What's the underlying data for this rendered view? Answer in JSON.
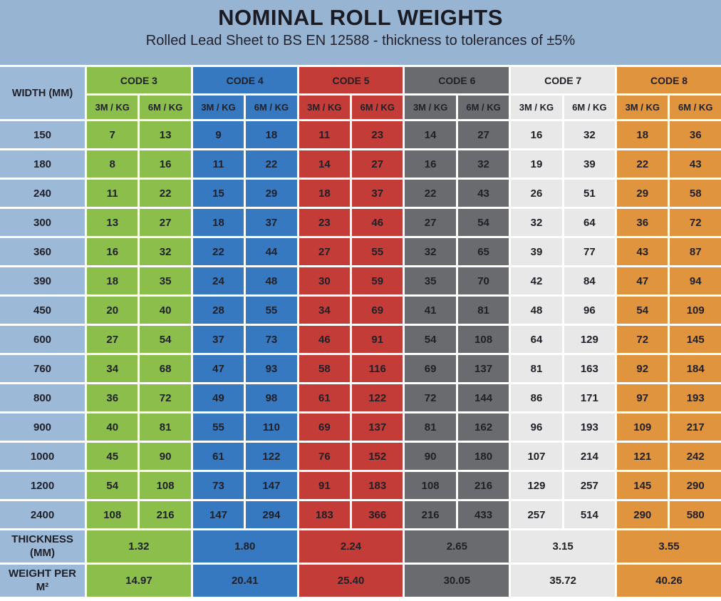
{
  "banner": {
    "title": "NOMINAL ROLL WEIGHTS",
    "subtitle": "Rolled Lead Sheet to BS EN 12588 - thickness to tolerances of ±5%"
  },
  "colors": {
    "banner_bg": "#98B4D3",
    "width_col_bg": "#9DB9D8",
    "grid": "#FFFFFF",
    "text": "#202028",
    "codes": [
      "#8CBE4C",
      "#3679C0",
      "#C43C37",
      "#6A6B6E",
      "#E8E8E8",
      "#E0943D"
    ]
  },
  "chart_data": {
    "type": "table",
    "title": "NOMINAL ROLL WEIGHTS",
    "subtitle": "Rolled Lead Sheet to BS EN 12588 - thickness to tolerances of ±5%",
    "width_header": "WIDTH (MM)",
    "code_labels": [
      "CODE 3",
      "CODE 4",
      "CODE 5",
      "CODE 6",
      "CODE 7",
      "CODE 8"
    ],
    "subheaders": [
      "3M / KG",
      "6M / KG"
    ],
    "rows": [
      {
        "width": "150",
        "values": [
          [
            7,
            13
          ],
          [
            9,
            18
          ],
          [
            11,
            23
          ],
          [
            14,
            27
          ],
          [
            16,
            32
          ],
          [
            18,
            36
          ]
        ]
      },
      {
        "width": "180",
        "values": [
          [
            8,
            16
          ],
          [
            11,
            22
          ],
          [
            14,
            27
          ],
          [
            16,
            32
          ],
          [
            19,
            39
          ],
          [
            22,
            43
          ]
        ]
      },
      {
        "width": "240",
        "values": [
          [
            11,
            22
          ],
          [
            15,
            29
          ],
          [
            18,
            37
          ],
          [
            22,
            43
          ],
          [
            26,
            51
          ],
          [
            29,
            58
          ]
        ]
      },
      {
        "width": "300",
        "values": [
          [
            13,
            27
          ],
          [
            18,
            37
          ],
          [
            23,
            46
          ],
          [
            27,
            54
          ],
          [
            32,
            64
          ],
          [
            36,
            72
          ]
        ]
      },
      {
        "width": "360",
        "values": [
          [
            16,
            32
          ],
          [
            22,
            44
          ],
          [
            27,
            55
          ],
          [
            32,
            65
          ],
          [
            39,
            77
          ],
          [
            43,
            87
          ]
        ]
      },
      {
        "width": "390",
        "values": [
          [
            18,
            35
          ],
          [
            24,
            48
          ],
          [
            30,
            59
          ],
          [
            35,
            70
          ],
          [
            42,
            84
          ],
          [
            47,
            94
          ]
        ]
      },
      {
        "width": "450",
        "values": [
          [
            20,
            40
          ],
          [
            28,
            55
          ],
          [
            34,
            69
          ],
          [
            41,
            81
          ],
          [
            48,
            96
          ],
          [
            54,
            109
          ]
        ]
      },
      {
        "width": "600",
        "values": [
          [
            27,
            54
          ],
          [
            37,
            73
          ],
          [
            46,
            91
          ],
          [
            54,
            108
          ],
          [
            64,
            129
          ],
          [
            72,
            145
          ]
        ]
      },
      {
        "width": "760",
        "values": [
          [
            34,
            68
          ],
          [
            47,
            93
          ],
          [
            58,
            116
          ],
          [
            69,
            137
          ],
          [
            81,
            163
          ],
          [
            92,
            184
          ]
        ]
      },
      {
        "width": "800",
        "values": [
          [
            36,
            72
          ],
          [
            49,
            98
          ],
          [
            61,
            122
          ],
          [
            72,
            144
          ],
          [
            86,
            171
          ],
          [
            97,
            193
          ]
        ]
      },
      {
        "width": "900",
        "values": [
          [
            40,
            81
          ],
          [
            55,
            110
          ],
          [
            69,
            137
          ],
          [
            81,
            162
          ],
          [
            96,
            193
          ],
          [
            109,
            217
          ]
        ]
      },
      {
        "width": "1000",
        "values": [
          [
            45,
            90
          ],
          [
            61,
            122
          ],
          [
            76,
            152
          ],
          [
            90,
            180
          ],
          [
            107,
            214
          ],
          [
            121,
            242
          ]
        ]
      },
      {
        "width": "1200",
        "values": [
          [
            54,
            108
          ],
          [
            73,
            147
          ],
          [
            91,
            183
          ],
          [
            108,
            216
          ],
          [
            129,
            257
          ],
          [
            145,
            290
          ]
        ]
      },
      {
        "width": "2400",
        "values": [
          [
            108,
            216
          ],
          [
            147,
            294
          ],
          [
            183,
            366
          ],
          [
            216,
            433
          ],
          [
            257,
            514
          ],
          [
            290,
            580
          ]
        ]
      }
    ],
    "thickness_label": [
      "THICKNESS",
      "(MM)"
    ],
    "thickness_mm": [
      "1.32",
      "1.80",
      "2.24",
      "2.65",
      "3.15",
      "3.55"
    ],
    "weight_label": [
      "WEIGHT PER",
      "M²"
    ],
    "weight_per_m2": [
      "14.97",
      "20.41",
      "25.40",
      "30.05",
      "35.72",
      "40.26"
    ]
  }
}
